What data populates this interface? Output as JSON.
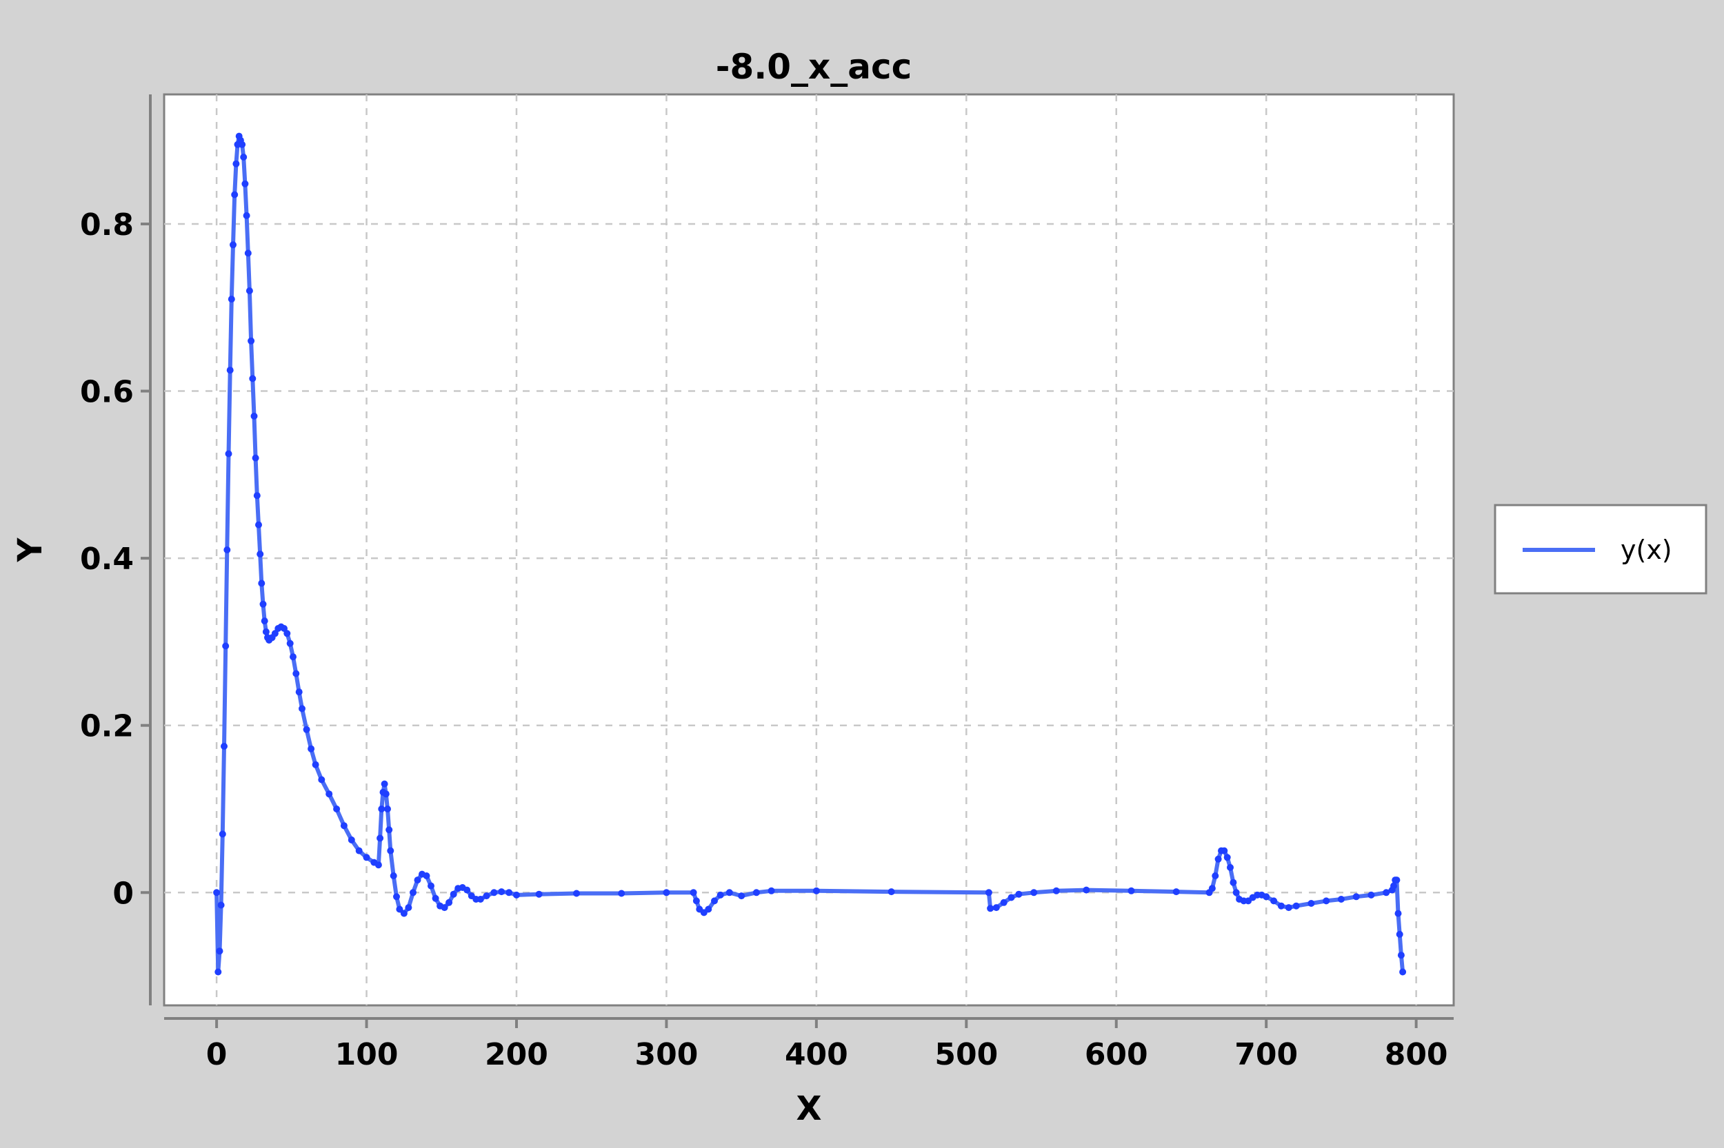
{
  "colors": {
    "background": "#d3d3d3",
    "plot_background": "#ffffff",
    "series": "#1f3fff",
    "series_line": "#4a6ef5",
    "grid": "#c8c8c8",
    "frame": "#808080"
  },
  "chart_data": {
    "type": "line",
    "title": "-8.0_x_acc",
    "xlabel": "X",
    "ylabel": "Y",
    "xlim": [
      -35,
      825
    ],
    "ylim": [
      -0.135,
      0.955
    ],
    "xticks": [
      0,
      100,
      200,
      300,
      400,
      500,
      600,
      700,
      800
    ],
    "xtick_labels": [
      "0",
      "100",
      "200",
      "300",
      "400",
      "500",
      "600",
      "700",
      "800"
    ],
    "yticks": [
      0,
      0.2,
      0.4,
      0.6,
      0.8
    ],
    "ytick_labels": [
      "0",
      "0.2",
      "0.4",
      "0.6",
      "0.8"
    ],
    "grid": true,
    "legend_position": "right",
    "markers": true,
    "series": [
      {
        "name": "y(x)",
        "points": [
          [
            0,
            0
          ],
          [
            1,
            -0.095
          ],
          [
            2,
            -0.07
          ],
          [
            3,
            -0.015
          ],
          [
            4,
            0.07
          ],
          [
            5,
            0.175
          ],
          [
            6,
            0.295
          ],
          [
            7,
            0.41
          ],
          [
            8,
            0.525
          ],
          [
            9,
            0.625
          ],
          [
            10,
            0.71
          ],
          [
            11,
            0.775
          ],
          [
            12,
            0.835
          ],
          [
            13,
            0.872
          ],
          [
            14,
            0.895
          ],
          [
            15,
            0.905
          ],
          [
            16,
            0.9
          ],
          [
            17,
            0.895
          ],
          [
            18,
            0.88
          ],
          [
            19,
            0.848
          ],
          [
            20,
            0.81
          ],
          [
            21,
            0.765
          ],
          [
            22,
            0.72
          ],
          [
            23,
            0.66
          ],
          [
            24,
            0.615
          ],
          [
            25,
            0.57
          ],
          [
            26,
            0.52
          ],
          [
            27,
            0.475
          ],
          [
            28,
            0.44
          ],
          [
            29,
            0.405
          ],
          [
            30,
            0.37
          ],
          [
            31,
            0.345
          ],
          [
            32,
            0.325
          ],
          [
            33,
            0.312
          ],
          [
            34,
            0.305
          ],
          [
            35,
            0.302
          ],
          [
            37,
            0.305
          ],
          [
            39,
            0.31
          ],
          [
            41,
            0.316
          ],
          [
            43,
            0.318
          ],
          [
            45,
            0.316
          ],
          [
            47,
            0.31
          ],
          [
            49,
            0.298
          ],
          [
            51,
            0.282
          ],
          [
            53,
            0.262
          ],
          [
            55,
            0.24
          ],
          [
            57,
            0.22
          ],
          [
            60,
            0.195
          ],
          [
            63,
            0.172
          ],
          [
            66,
            0.153
          ],
          [
            70,
            0.135
          ],
          [
            75,
            0.118
          ],
          [
            80,
            0.1
          ],
          [
            85,
            0.08
          ],
          [
            90,
            0.063
          ],
          [
            95,
            0.05
          ],
          [
            100,
            0.042
          ],
          [
            105,
            0.036
          ],
          [
            108,
            0.033
          ],
          [
            109,
            0.065
          ],
          [
            110,
            0.1
          ],
          [
            111,
            0.12
          ],
          [
            112,
            0.13
          ],
          [
            113,
            0.118
          ],
          [
            114,
            0.1
          ],
          [
            115,
            0.075
          ],
          [
            116,
            0.05
          ],
          [
            118,
            0.02
          ],
          [
            120,
            -0.005
          ],
          [
            122,
            -0.02
          ],
          [
            125,
            -0.025
          ],
          [
            128,
            -0.018
          ],
          [
            131,
            0
          ],
          [
            134,
            0.015
          ],
          [
            137,
            0.022
          ],
          [
            140,
            0.02
          ],
          [
            143,
            0.008
          ],
          [
            146,
            -0.007
          ],
          [
            149,
            -0.016
          ],
          [
            152,
            -0.018
          ],
          [
            155,
            -0.012
          ],
          [
            158,
            -0.002
          ],
          [
            161,
            0.005
          ],
          [
            164,
            0.006
          ],
          [
            167,
            0.003
          ],
          [
            170,
            -0.004
          ],
          [
            173,
            -0.008
          ],
          [
            176,
            -0.008
          ],
          [
            180,
            -0.004
          ],
          [
            185,
            0
          ],
          [
            190,
            0.001
          ],
          [
            195,
            0
          ],
          [
            200,
            -0.003
          ],
          [
            215,
            -0.002
          ],
          [
            240,
            -0.001
          ],
          [
            270,
            -0.001
          ],
          [
            300,
            0
          ],
          [
            318,
            0
          ],
          [
            320,
            -0.01
          ],
          [
            322,
            -0.02
          ],
          [
            325,
            -0.024
          ],
          [
            328,
            -0.02
          ],
          [
            332,
            -0.01
          ],
          [
            336,
            -0.003
          ],
          [
            342,
            0
          ],
          [
            350,
            -0.004
          ],
          [
            360,
            0
          ],
          [
            370,
            0.002
          ],
          [
            400,
            0.002
          ],
          [
            450,
            0.001
          ],
          [
            515,
            0
          ],
          [
            516,
            -0.019
          ],
          [
            520,
            -0.018
          ],
          [
            525,
            -0.012
          ],
          [
            530,
            -0.006
          ],
          [
            535,
            -0.002
          ],
          [
            545,
            0
          ],
          [
            560,
            0.002
          ],
          [
            580,
            0.003
          ],
          [
            610,
            0.002
          ],
          [
            640,
            0.001
          ],
          [
            662,
            0
          ],
          [
            664,
            0.005
          ],
          [
            666,
            0.02
          ],
          [
            668,
            0.04
          ],
          [
            670,
            0.05
          ],
          [
            672,
            0.05
          ],
          [
            674,
            0.042
          ],
          [
            676,
            0.03
          ],
          [
            678,
            0.012
          ],
          [
            680,
            0
          ],
          [
            682,
            -0.008
          ],
          [
            685,
            -0.01
          ],
          [
            688,
            -0.01
          ],
          [
            691,
            -0.006
          ],
          [
            694,
            -0.003
          ],
          [
            697,
            -0.003
          ],
          [
            700,
            -0.005
          ],
          [
            705,
            -0.01
          ],
          [
            710,
            -0.016
          ],
          [
            715,
            -0.018
          ],
          [
            720,
            -0.016
          ],
          [
            730,
            -0.013
          ],
          [
            740,
            -0.01
          ],
          [
            750,
            -0.008
          ],
          [
            760,
            -0.005
          ],
          [
            770,
            -0.003
          ],
          [
            780,
            0
          ],
          [
            784,
            0.003
          ],
          [
            785,
            0.008
          ],
          [
            786,
            0.015
          ],
          [
            787,
            0.015
          ],
          [
            788,
            -0.025
          ],
          [
            789,
            -0.05
          ],
          [
            790,
            -0.075
          ],
          [
            791,
            -0.095
          ]
        ]
      }
    ]
  }
}
